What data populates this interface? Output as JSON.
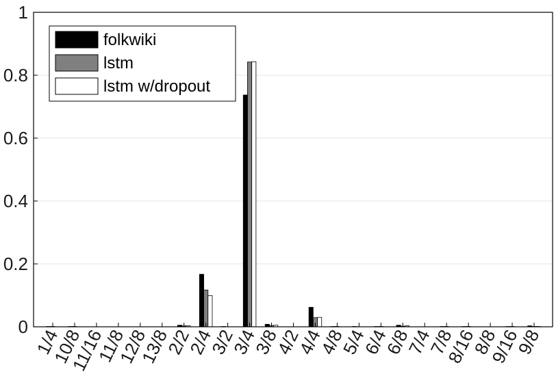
{
  "chart_data": {
    "type": "bar",
    "title": "",
    "xlabel": "",
    "ylabel": "",
    "ylim": [
      0,
      1
    ],
    "yticks": [
      0,
      0.2,
      0.4,
      0.6,
      0.8,
      1
    ],
    "ytick_labels": [
      "0",
      "0.2",
      "0.4",
      "0.6",
      "0.8",
      "1"
    ],
    "grid": true,
    "legend_position": "top-left",
    "categories": [
      "1/4",
      "10/8",
      "11/16",
      "11/8",
      "12/8",
      "13/8",
      "2/2",
      "2/4",
      "3/2",
      "3/4",
      "3/8",
      "4/2",
      "4/4",
      "4/8",
      "5/4",
      "6/4",
      "6/8",
      "7/4",
      "7/8",
      "8/16",
      "8/8",
      "9/16",
      "9/8"
    ],
    "series": [
      {
        "name": "folkwiki",
        "color": "#000000",
        "values": [
          0.001,
          0.001,
          0,
          0,
          0,
          0,
          0.005,
          0.167,
          0.001,
          0.737,
          0.008,
          0,
          0.062,
          0.001,
          0.001,
          0.001,
          0.005,
          0,
          0.001,
          0.001,
          0,
          0.001,
          0.003
        ]
      },
      {
        "name": "lstm",
        "color": "#808080",
        "values": [
          0.001,
          0.001,
          0,
          0,
          0,
          0,
          0.003,
          0.117,
          0,
          0.842,
          0.004,
          0,
          0.029,
          0.001,
          0,
          0.001,
          0.002,
          0,
          0.001,
          0.001,
          0,
          0.001,
          0.001
        ]
      },
      {
        "name": "lstm w/dropout",
        "color": "#ffffff",
        "values": [
          0,
          0,
          0,
          0,
          0,
          0,
          0.003,
          0.099,
          0,
          0.843,
          0.005,
          0,
          0.03,
          0,
          0,
          0,
          0.003,
          0,
          0,
          0,
          0,
          0,
          0.001
        ]
      }
    ]
  }
}
